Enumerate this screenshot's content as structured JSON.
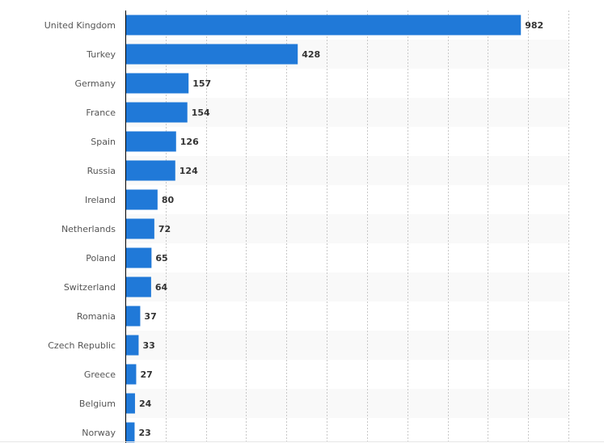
{
  "chart_data": {
    "type": "bar",
    "orientation": "horizontal",
    "title": "",
    "xlabel": "",
    "ylabel": "",
    "xlim": [
      0,
      1100
    ],
    "grid": true,
    "categories": [
      "United Kingdom",
      "Turkey",
      "Germany",
      "France",
      "Spain",
      "Russia",
      "Ireland",
      "Netherlands",
      "Poland",
      "Switzerland",
      "Romania",
      "Czech Republic",
      "Greece",
      "Belgium",
      "Norway"
    ],
    "values": [
      982,
      428,
      157,
      154,
      126,
      124,
      80,
      72,
      65,
      64,
      37,
      33,
      27,
      24,
      23
    ],
    "bar_color": "#2079d8",
    "stripe_color": "#f9f9f9"
  }
}
